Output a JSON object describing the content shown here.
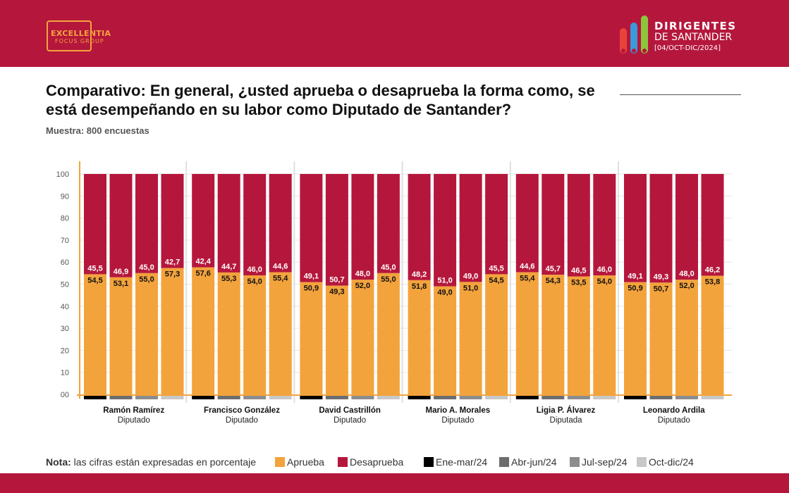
{
  "header": {
    "logo_left_name": "EXCELLENTIA",
    "logo_left_sub": "FOCUS GROUP",
    "logo_right_line1": "DIRIGENTES",
    "logo_right_line2": "DE SANTANDER",
    "logo_right_line3": "[04/OCT-DIC/2024]"
  },
  "colors": {
    "brand": "#b5173c",
    "aprueba": "#f3a33c",
    "desaprueba": "#b5173c",
    "q1": "#000000",
    "q2": "#6d6d6d",
    "q3": "#8c8c8c",
    "q4": "#c8c8c8"
  },
  "title": "Comparativo: En general, ¿usted aprueba o desaprueba la forma como, se está desempeñando en su labor como Diputado de Santander?",
  "sample": "Muestra: 800 encuestas",
  "legend": {
    "nota_label": "Nota:",
    "nota_text": " las cifras están expresadas en porcentaje",
    "aprueba": "Aprueba",
    "desaprueba": "Desaprueba",
    "q1": "Ene-mar/24",
    "q2": "Abr-jun/24",
    "q3": "Jul-sep/24",
    "q4": "Oct-dic/24"
  },
  "chart_data": {
    "type": "bar",
    "stacked": true,
    "ylim": [
      0,
      100
    ],
    "yticks": [
      "00",
      "10",
      "20",
      "30",
      "40",
      "50",
      "60",
      "70",
      "80",
      "90",
      "100"
    ],
    "periods": [
      "Ene-mar/24",
      "Abr-jun/24",
      "Jul-sep/24",
      "Oct-dic/24"
    ],
    "groups": [
      {
        "name": "Ramón Ramírez",
        "role": "Diputado",
        "aprueba": [
          "54,5",
          "53,1",
          "55,0",
          "57,3"
        ],
        "desaprueba": [
          "45,5",
          "46,9",
          "45,0",
          "42,7"
        ]
      },
      {
        "name": "Francisco González",
        "role": "Diputado",
        "aprueba": [
          "57,6",
          "55,3",
          "54,0",
          "55,4"
        ],
        "desaprueba": [
          "42,4",
          "44,7",
          "46,0",
          "44,6"
        ]
      },
      {
        "name": "David Castrillón",
        "role": "Diputado",
        "aprueba": [
          "50,9",
          "49,3",
          "52,0",
          "55,0"
        ],
        "desaprueba": [
          "49,1",
          "50,7",
          "48,0",
          "45,0"
        ]
      },
      {
        "name": "Mario A. Morales",
        "role": "Diputado",
        "aprueba": [
          "51,8",
          "49,0",
          "51,0",
          "54,5"
        ],
        "desaprueba": [
          "48,2",
          "51,0",
          "49,0",
          "45,5"
        ]
      },
      {
        "name": "Ligia P. Álvarez",
        "role": "Diputada",
        "aprueba": [
          "55,4",
          "54,3",
          "53,5",
          "54,0"
        ],
        "desaprueba": [
          "44,6",
          "45,7",
          "46,5",
          "46,0"
        ]
      },
      {
        "name": "Leonardo Ardila",
        "role": "Diputado",
        "aprueba": [
          "50,9",
          "50,7",
          "52,0",
          "53,8"
        ],
        "desaprueba": [
          "49,1",
          "49,3",
          "48,0",
          "46,2"
        ]
      }
    ]
  }
}
